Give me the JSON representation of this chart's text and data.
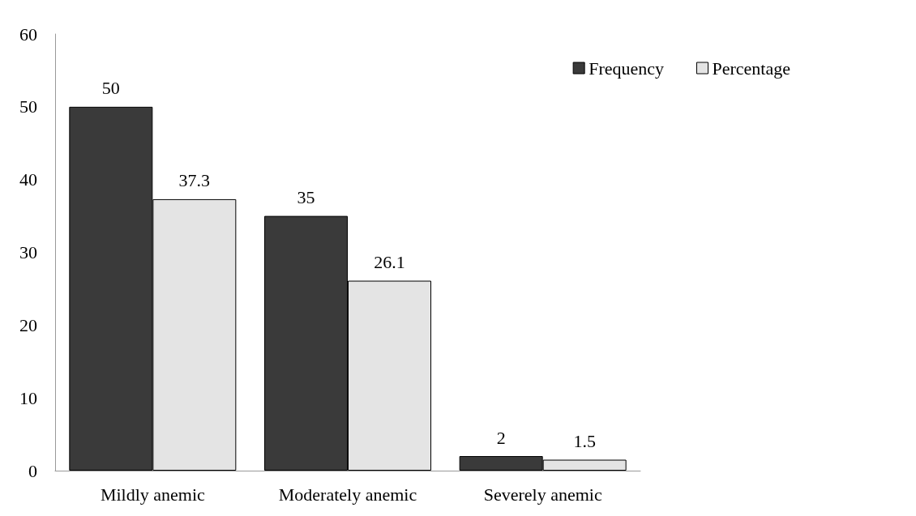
{
  "chart_data": {
    "type": "bar",
    "categories": [
      "Mildly anemic",
      "Moderately anemic",
      "Severely anemic"
    ],
    "series": [
      {
        "name": "Frequency",
        "color": "#3a3a3a",
        "values": [
          50,
          35,
          2
        ]
      },
      {
        "name": "Percentage",
        "color": "#e4e4e4",
        "values": [
          37.3,
          26.1,
          1.5
        ]
      }
    ],
    "ylim": [
      0,
      60
    ],
    "yticks": [
      0,
      10,
      20,
      30,
      40,
      50,
      60
    ],
    "data_labels": true,
    "grid": false,
    "legend": "top right"
  }
}
